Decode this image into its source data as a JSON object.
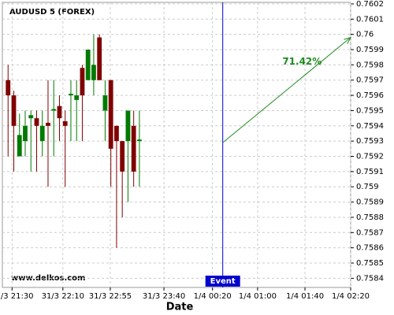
{
  "chart_data": {
    "type": "candlestick",
    "title": "AUDUSD 5 (FOREX)",
    "xlabel": "Date",
    "watermark": "www.delkos.com",
    "up_color": "#007a00",
    "down_color": "#800000",
    "open": [
      0.7597,
      0.7596,
      0.7592,
      0.7593,
      0.75945,
      0.75945,
      0.7593,
      0.75942,
      0.7595,
      0.75953,
      0.75943,
      0.7596,
      0.75957,
      0.75978,
      0.7597,
      0.7597,
      0.75998,
      0.7595,
      0.7597,
      0.7594,
      0.7593,
      0.7593,
      0.7594,
      0.7593
    ],
    "close": [
      0.7596,
      0.7594,
      0.75934,
      0.7594,
      0.75947,
      0.7594,
      0.7594,
      0.7594,
      0.75951,
      0.75945,
      0.7594,
      0.75961,
      0.7596,
      0.7596,
      0.7599,
      0.7598,
      0.7597,
      0.7596,
      0.75925,
      0.7593,
      0.7591,
      0.7595,
      0.7591,
      0.75931
    ],
    "high": [
      0.7598,
      0.75963,
      0.75948,
      0.7595,
      0.7595,
      0.7595,
      0.7595,
      0.7597,
      0.7597,
      0.7596,
      0.7595,
      0.7597,
      0.7597,
      0.7598,
      0.7599,
      0.76,
      0.76,
      0.7597,
      0.7597,
      0.7594,
      0.7593,
      0.7595,
      0.7595,
      0.7595
    ],
    "low": [
      0.7592,
      0.7591,
      0.7592,
      0.7592,
      0.7591,
      0.7591,
      0.7592,
      0.759,
      0.7592,
      0.7593,
      0.759,
      0.7593,
      0.7593,
      0.7593,
      0.7597,
      0.7596,
      0.7597,
      0.7593,
      0.759,
      0.7586,
      0.7588,
      0.7589,
      0.759,
      0.759
    ],
    "xlim": [
      -1,
      60
    ],
    "xticks": [
      {
        "value": 0.7,
        "label": "31/3 21:30"
      },
      {
        "value": 9.6,
        "label": "31/3 22:10"
      },
      {
        "value": 17.9,
        "label": "31/3 22:55"
      },
      {
        "value": 27.3,
        "label": "31/3 23:40"
      },
      {
        "value": 35.8,
        "label": "1/4 00:20"
      },
      {
        "value": 43.7,
        "label": "1/4 01:00"
      },
      {
        "value": 52,
        "label": "1/4 01:40"
      },
      {
        "value": 60,
        "label": "1/4 02:20"
      }
    ],
    "ylim": [
      0.75834,
      0.76021
    ],
    "yticks": [
      0.7584,
      0.7585,
      0.7586,
      0.7587,
      0.7588,
      0.7589,
      0.759,
      0.7591,
      0.7592,
      0.7593,
      0.7594,
      0.7595,
      0.7596,
      0.7597,
      0.7598,
      0.7599,
      0.76,
      0.7601,
      0.7602
    ],
    "grid": true,
    "event": {
      "label": "Event",
      "x": 37.6,
      "color": "#0000cc"
    },
    "arrow": {
      "label": "71.42%",
      "x": [
        37.6,
        60
      ],
      "y": [
        0.75929,
        0.75998
      ],
      "color": "#228b22"
    }
  }
}
